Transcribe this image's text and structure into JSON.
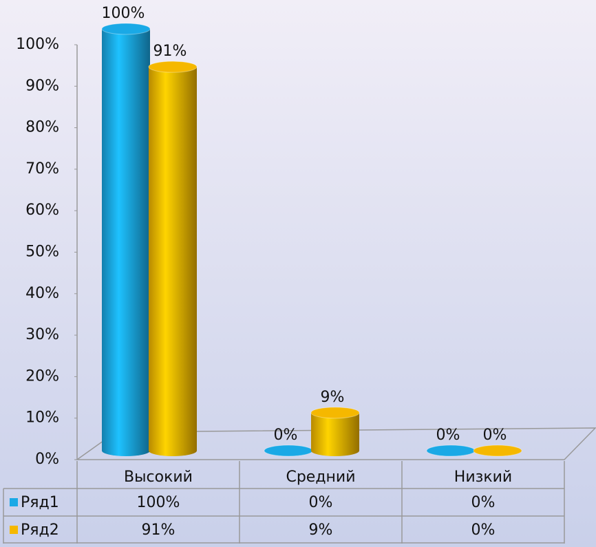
{
  "chart_data": {
    "type": "bar",
    "categories": [
      "Высокий",
      "Средний",
      "Низкий"
    ],
    "series": [
      {
        "name": "Ряд1",
        "color": "#1aa9e6",
        "values": [
          100,
          0,
          0
        ],
        "value_labels": [
          "100%",
          "0%",
          "0%"
        ]
      },
      {
        "name": "Ряд2",
        "color": "#f5b800",
        "values": [
          91,
          9,
          0
        ],
        "value_labels": [
          "91%",
          "9%",
          "0%"
        ]
      }
    ],
    "ylim": [
      0,
      100
    ],
    "yticks": [
      {
        "value": 0,
        "label": "0%"
      },
      {
        "value": 10,
        "label": "10%"
      },
      {
        "value": 20,
        "label": "20%"
      },
      {
        "value": 30,
        "label": "30%"
      },
      {
        "value": 40,
        "label": "40%"
      },
      {
        "value": 50,
        "label": "50%"
      },
      {
        "value": 60,
        "label": "60%"
      },
      {
        "value": 70,
        "label": "70%"
      },
      {
        "value": 80,
        "label": "80%"
      },
      {
        "value": 90,
        "label": "90%"
      },
      {
        "value": 100,
        "label": "100%"
      }
    ],
    "data_table": true
  }
}
